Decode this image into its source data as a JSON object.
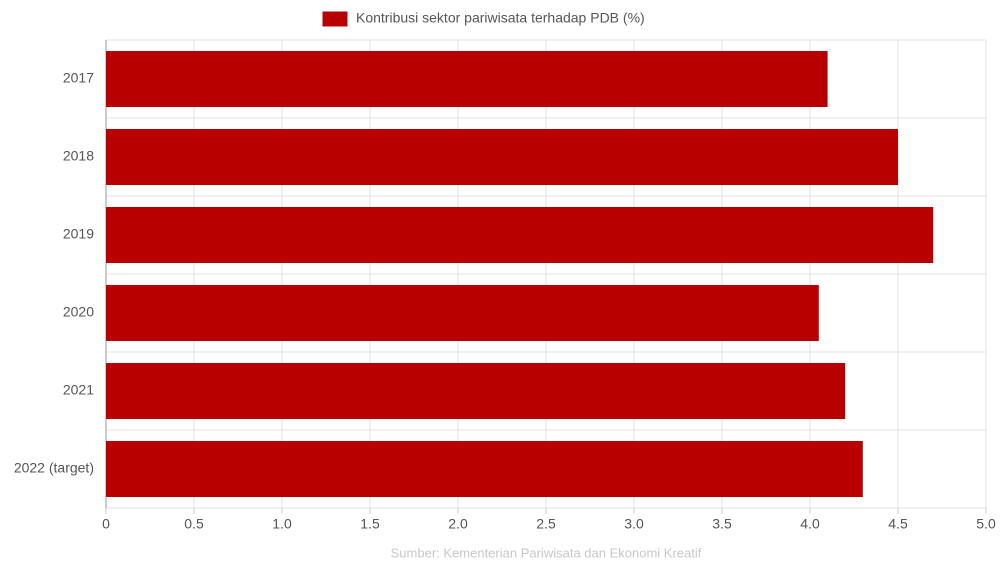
{
  "chart_data": {
    "type": "bar",
    "orientation": "horizontal",
    "series": [
      {
        "name": "Kontribusi sektor pariwisata terhadap PDB (%)",
        "color": "#b90000",
        "values": [
          4.1,
          4.5,
          4.7,
          4.05,
          4.2,
          4.3
        ]
      }
    ],
    "categories": [
      "2017",
      "2018",
      "2019",
      "2020",
      "2021",
      "2022 (target)"
    ],
    "xlim": [
      0,
      5
    ],
    "xticks": [
      0,
      0.5,
      {
        "value": 1,
        "label": "1.0"
      },
      1.5,
      {
        "value": 2,
        "label": "2.0"
      },
      2.5,
      {
        "value": 3,
        "label": "3.0"
      },
      3.5,
      {
        "value": 4,
        "label": "4.0"
      },
      4.5,
      {
        "value": 5,
        "label": "5.0"
      }
    ],
    "grid": true,
    "legend": "top",
    "source": "Sumber: Kementerian Pariwisata dan Ekonomi Kreatif"
  }
}
